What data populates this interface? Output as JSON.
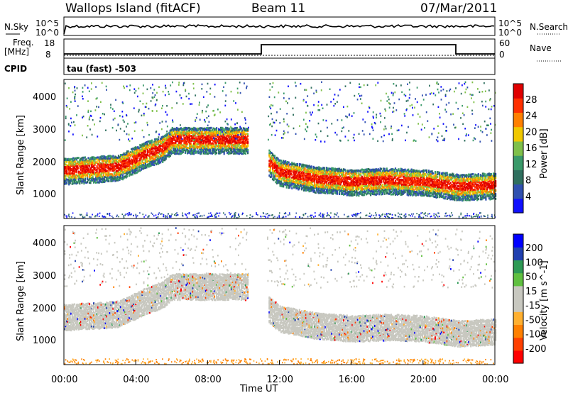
{
  "header": {
    "title": "Wallops Island (fitACF)",
    "beam": "Beam 11",
    "date": "07/Mar/2011"
  },
  "noise_panel": {
    "left_label": "N.Sky",
    "right_label": "N.Search",
    "left_ticks": [
      "10^5",
      "10^0"
    ],
    "right_ticks": [
      "10^5",
      "10^0"
    ]
  },
  "freq_panel": {
    "left_label_1": "Freq.",
    "left_label_2": "[MHz]",
    "right_label": "Nave",
    "left_ticks": [
      "18",
      "8"
    ],
    "right_ticks": [
      "60",
      "0"
    ]
  },
  "cpid": {
    "label": "CPID",
    "text": "tau (fast) -503"
  },
  "colors": {
    "power_scale": [
      "#1010ff",
      "#3050b0",
      "#2f6f5f",
      "#3a9a6a",
      "#7fc04a",
      "#f0c800",
      "#ff8000",
      "#ff3000",
      "#e00000"
    ],
    "velocity_scale": [
      "#ff0000",
      "#ff4000",
      "#ff8000",
      "#ffb030",
      "#c8c8c0",
      "#c8c8c0",
      "#60c040",
      "#2e9a55",
      "#2040b0",
      "#0000ff"
    ]
  },
  "chart_data": [
    {
      "type": "heatmap",
      "title": "",
      "xlabel": "Time UT",
      "ylabel": "Slant Range [km]",
      "x_ticks": [
        "00:00",
        "04:00",
        "08:00",
        "12:00",
        "16:00",
        "20:00",
        "00:00"
      ],
      "y_ticks": [
        "1000",
        "2000",
        "3000",
        "4000"
      ],
      "colorbar_label": "Power [dB]",
      "colorbar_ticks": [
        "4",
        "8",
        "12",
        "16",
        "20",
        "24",
        "28"
      ],
      "xlim_hours": [
        0,
        24
      ],
      "ylim_km": [
        200,
        4500
      ],
      "features": [
        {
          "name": "ionospheric band",
          "x": [
            0,
            1.5,
            3,
            4.5,
            5.5,
            6,
            10.2
          ],
          "y": [
            1650,
            1700,
            1750,
            2150,
            2350,
            2600,
            2600
          ]
        },
        {
          "name": "ionospheric band",
          "x": [
            11.4,
            12,
            14,
            16,
            18,
            20,
            22,
            24
          ],
          "y": [
            1900,
            1600,
            1400,
            1300,
            1350,
            1300,
            1150,
            1200
          ]
        }
      ]
    },
    {
      "type": "heatmap",
      "title": "",
      "xlabel": "Time UT",
      "ylabel": "Slant Range [km]",
      "x_ticks": [
        "00:00",
        "04:00",
        "08:00",
        "12:00",
        "16:00",
        "20:00",
        "00:00"
      ],
      "y_ticks": [
        "1000",
        "2000",
        "3000",
        "4000"
      ],
      "colorbar_label": "Velocity [m s^-1]",
      "colorbar_ticks": [
        "200",
        "100",
        "50",
        "15",
        "-15",
        "-50",
        "-100",
        "-200"
      ],
      "xlim_hours": [
        0,
        24
      ],
      "ylim_km": [
        200,
        4500
      ]
    }
  ]
}
